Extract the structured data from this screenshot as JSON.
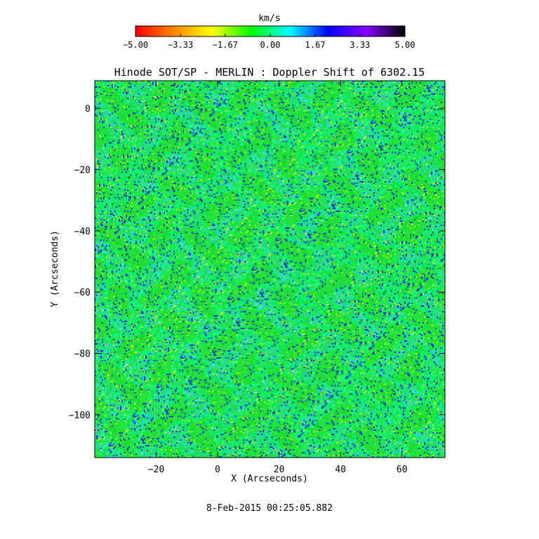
{
  "chart_data": {
    "type": "heatmap",
    "title": "Hinode SOT/SP - MERLIN : Doppler Shift of 6302.15",
    "xlabel": "X (Arcseconds)",
    "ylabel": "Y (Arcseconds)",
    "xlim": [
      -40,
      74
    ],
    "ylim": [
      -114,
      9
    ],
    "xticks": [
      -20,
      0,
      20,
      40,
      60
    ],
    "yticks": [
      0,
      -20,
      -40,
      -60,
      -80,
      -100
    ],
    "xtick_labels": [
      "−20",
      "0",
      "20",
      "40",
      "60"
    ],
    "ytick_labels": [
      "0",
      "−20",
      "−40",
      "−60",
      "−80",
      "−100"
    ],
    "colorbar": {
      "label": "km/s",
      "range": [
        -5.0,
        5.0
      ],
      "ticks": [
        -5.0,
        -3.33,
        -1.67,
        0.0,
        1.67,
        3.33,
        5.0
      ],
      "tick_labels": [
        "−5.00",
        "−3.33",
        "−1.67",
        "0.00",
        "1.67",
        "3.33",
        "5.00"
      ],
      "colormap": [
        "#ff0000",
        "#ff8800",
        "#ffff00",
        "#00ff00",
        "#00ffff",
        "#0000ff",
        "#8800ff",
        "#000000"
      ]
    },
    "dominant_colors": [
      "#22e03a",
      "#10f07a",
      "#2bd9c0",
      "#1d2dd6",
      "#c9ec20"
    ],
    "grid": false,
    "timestamp": "8-Feb-2015 00:25:05.882"
  }
}
